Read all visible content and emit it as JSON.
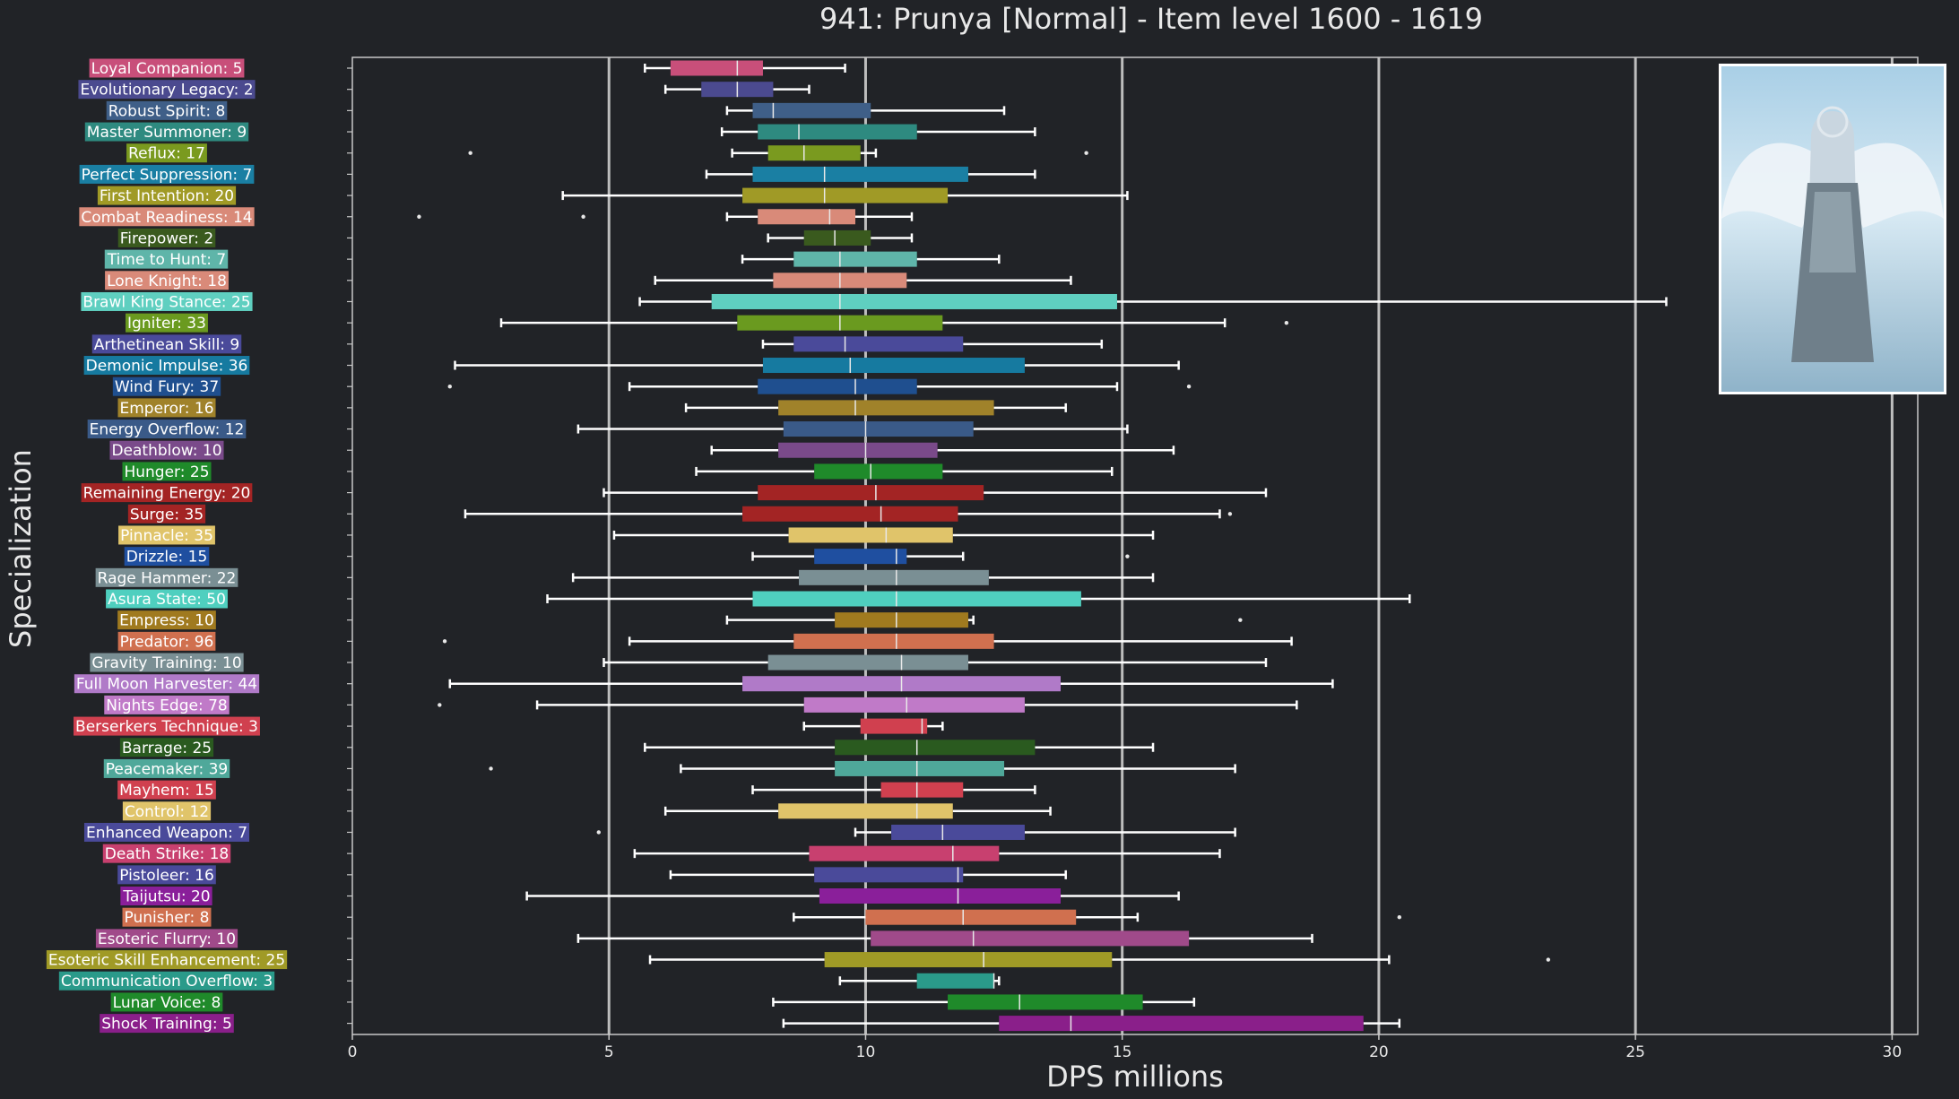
{
  "title": "941: Prunya [Normal] - Item level 1600 - 1619",
  "portrait_icon": "winged-character-portrait",
  "chart_data": {
    "type": "boxplot",
    "orientation": "horizontal",
    "title": "941: Prunya [Normal] - Item level 1600 - 1619",
    "xlabel": "DPS millions",
    "ylabel": "Specialization",
    "xlim": [
      0,
      30.5
    ],
    "xticks": [
      0,
      5,
      10,
      15,
      20,
      25,
      30
    ],
    "grid": "vertical",
    "series": [
      {
        "label": "Loyal Companion: 5",
        "color": "#c84f7a",
        "whislo": 5.7,
        "q1": 6.2,
        "med": 7.5,
        "q3": 8.0,
        "whishi": 9.6,
        "fliers": []
      },
      {
        "label": "Evolutionary Legacy: 2",
        "color": "#4b4a8f",
        "whislo": 6.1,
        "q1": 6.8,
        "med": 7.5,
        "q3": 8.2,
        "whishi": 8.9,
        "fliers": []
      },
      {
        "label": "Robust Spirit: 8",
        "color": "#3f5f88",
        "whislo": 7.3,
        "q1": 7.8,
        "med": 8.2,
        "q3": 10.1,
        "whishi": 12.7,
        "fliers": []
      },
      {
        "label": "Master Summoner: 9",
        "color": "#2e8a80",
        "whislo": 7.2,
        "q1": 7.9,
        "med": 8.7,
        "q3": 11.0,
        "whishi": 13.3,
        "fliers": []
      },
      {
        "label": "Reflux: 17",
        "color": "#7a9a1f",
        "whislo": 7.4,
        "q1": 8.1,
        "med": 8.8,
        "q3": 9.9,
        "whishi": 10.2,
        "fliers": [
          2.3,
          14.3
        ]
      },
      {
        "label": "Perfect Suppression: 7",
        "color": "#1a7fa3",
        "whislo": 6.9,
        "q1": 7.8,
        "med": 9.2,
        "q3": 12.0,
        "whishi": 13.3,
        "fliers": []
      },
      {
        "label": "First Intention: 20",
        "color": "#a09a26",
        "whislo": 4.1,
        "q1": 7.6,
        "med": 9.2,
        "q3": 11.6,
        "whishi": 15.1,
        "fliers": []
      },
      {
        "label": "Combat Readiness: 14",
        "color": "#d98a79",
        "whislo": 7.3,
        "q1": 7.9,
        "med": 9.3,
        "q3": 9.8,
        "whishi": 10.9,
        "fliers": [
          1.3,
          4.5
        ]
      },
      {
        "label": "Firepower: 2",
        "color": "#3a5a1e",
        "whislo": 8.1,
        "q1": 8.8,
        "med": 9.4,
        "q3": 10.1,
        "whishi": 10.9,
        "fliers": []
      },
      {
        "label": "Time to Hunt: 7",
        "color": "#5fb5a9",
        "whislo": 7.6,
        "q1": 8.6,
        "med": 9.5,
        "q3": 11.0,
        "whishi": 12.6,
        "fliers": []
      },
      {
        "label": "Lone Knight: 18",
        "color": "#d98a79",
        "whislo": 5.9,
        "q1": 8.2,
        "med": 9.5,
        "q3": 10.8,
        "whishi": 14.0,
        "fliers": []
      },
      {
        "label": "Brawl King Stance: 25",
        "color": "#5fcfc0",
        "whislo": 5.6,
        "q1": 7.0,
        "med": 9.5,
        "q3": 14.9,
        "whishi": 25.6,
        "fliers": []
      },
      {
        "label": "Igniter: 33",
        "color": "#6a9a1f",
        "whislo": 2.9,
        "q1": 7.5,
        "med": 9.5,
        "q3": 11.5,
        "whishi": 17.0,
        "fliers": [
          18.2
        ]
      },
      {
        "label": "Arthetinean Skill: 9",
        "color": "#4a4a9a",
        "whislo": 8.0,
        "q1": 8.6,
        "med": 9.6,
        "q3": 11.9,
        "whishi": 14.6,
        "fliers": []
      },
      {
        "label": "Demonic Impulse: 36",
        "color": "#167aa0",
        "whislo": 2.0,
        "q1": 8.0,
        "med": 9.7,
        "q3": 13.1,
        "whishi": 16.1,
        "fliers": []
      },
      {
        "label": "Wind Fury: 37",
        "color": "#1f4f8f",
        "whislo": 5.4,
        "q1": 7.9,
        "med": 9.8,
        "q3": 11.0,
        "whishi": 14.9,
        "fliers": [
          1.9,
          16.3
        ]
      },
      {
        "label": "Emperor: 16",
        "color": "#a0822a",
        "whislo": 6.5,
        "q1": 8.3,
        "med": 9.8,
        "q3": 12.5,
        "whishi": 13.9,
        "fliers": []
      },
      {
        "label": "Energy Overflow: 12",
        "color": "#3a5a88",
        "whislo": 4.4,
        "q1": 8.4,
        "med": 10.0,
        "q3": 12.1,
        "whishi": 15.1,
        "fliers": []
      },
      {
        "label": "Deathblow: 10",
        "color": "#7a4a8a",
        "whislo": 7.0,
        "q1": 8.3,
        "med": 10.0,
        "q3": 11.4,
        "whishi": 16.0,
        "fliers": []
      },
      {
        "label": "Hunger: 25",
        "color": "#1f8a2a",
        "whislo": 6.7,
        "q1": 9.0,
        "med": 10.1,
        "q3": 11.5,
        "whishi": 14.8,
        "fliers": []
      },
      {
        "label": "Remaining Energy: 20",
        "color": "#a32424",
        "whislo": 4.9,
        "q1": 7.9,
        "med": 10.2,
        "q3": 12.3,
        "whishi": 17.8,
        "fliers": []
      },
      {
        "label": "Surge: 35",
        "color": "#a32424",
        "whislo": 2.2,
        "q1": 7.6,
        "med": 10.3,
        "q3": 11.8,
        "whishi": 16.9,
        "fliers": [
          17.1
        ]
      },
      {
        "label": "Pinnacle: 35",
        "color": "#e0c46a",
        "whislo": 5.1,
        "q1": 8.5,
        "med": 10.4,
        "q3": 11.7,
        "whishi": 15.6,
        "fliers": []
      },
      {
        "label": "Drizzle: 15",
        "color": "#1f4fa0",
        "whislo": 7.8,
        "q1": 9.0,
        "med": 10.6,
        "q3": 10.8,
        "whishi": 11.9,
        "fliers": [
          15.1
        ]
      },
      {
        "label": "Rage Hammer: 22",
        "color": "#7a8f94",
        "whislo": 4.3,
        "q1": 8.7,
        "med": 10.6,
        "q3": 12.4,
        "whishi": 15.6,
        "fliers": []
      },
      {
        "label": "Asura State: 50",
        "color": "#4fcfbf",
        "whislo": 3.8,
        "q1": 7.8,
        "med": 10.6,
        "q3": 14.2,
        "whishi": 20.6,
        "fliers": []
      },
      {
        "label": "Empress: 10",
        "color": "#a07a1f",
        "whislo": 7.3,
        "q1": 9.4,
        "med": 10.6,
        "q3": 12.0,
        "whishi": 12.1,
        "fliers": [
          17.3
        ]
      },
      {
        "label": "Predator: 96",
        "color": "#d0704f",
        "whislo": 5.4,
        "q1": 8.6,
        "med": 10.6,
        "q3": 12.5,
        "whishi": 18.3,
        "fliers": [
          1.8
        ]
      },
      {
        "label": "Gravity Training: 10",
        "color": "#7a8f94",
        "whislo": 4.9,
        "q1": 8.1,
        "med": 10.7,
        "q3": 12.0,
        "whishi": 17.8,
        "fliers": []
      },
      {
        "label": "Full Moon Harvester: 44",
        "color": "#b07ac8",
        "whislo": 1.9,
        "q1": 7.6,
        "med": 10.7,
        "q3": 13.8,
        "whishi": 19.1,
        "fliers": []
      },
      {
        "label": "Nights Edge: 78",
        "color": "#c07ac8",
        "whislo": 3.6,
        "q1": 8.8,
        "med": 10.8,
        "q3": 13.1,
        "whishi": 18.4,
        "fliers": [
          1.7
        ]
      },
      {
        "label": "Berserkers Technique: 3",
        "color": "#d0404f",
        "whislo": 8.8,
        "q1": 9.9,
        "med": 11.1,
        "q3": 11.2,
        "whishi": 11.5,
        "fliers": []
      },
      {
        "label": "Barrage: 25",
        "color": "#2a5a1f",
        "whislo": 5.7,
        "q1": 9.4,
        "med": 11.0,
        "q3": 13.3,
        "whishi": 15.6,
        "fliers": []
      },
      {
        "label": "Peacemaker: 39",
        "color": "#4fa89a",
        "whislo": 6.4,
        "q1": 9.4,
        "med": 11.0,
        "q3": 12.7,
        "whishi": 17.2,
        "fliers": [
          2.7
        ]
      },
      {
        "label": "Mayhem: 15",
        "color": "#d0404f",
        "whislo": 7.8,
        "q1": 10.3,
        "med": 11.0,
        "q3": 11.9,
        "whishi": 13.3,
        "fliers": []
      },
      {
        "label": "Control: 12",
        "color": "#e0c46a",
        "whislo": 6.1,
        "q1": 8.3,
        "med": 11.0,
        "q3": 11.7,
        "whishi": 13.6,
        "fliers": []
      },
      {
        "label": "Enhanced Weapon: 7",
        "color": "#4a4a9a",
        "whislo": 9.8,
        "q1": 10.5,
        "med": 11.5,
        "q3": 13.1,
        "whishi": 17.2,
        "fliers": [
          4.8
        ]
      },
      {
        "label": "Death Strike: 18",
        "color": "#c8406f",
        "whislo": 5.5,
        "q1": 8.9,
        "med": 11.7,
        "q3": 12.6,
        "whishi": 16.9,
        "fliers": []
      },
      {
        "label": "Pistoleer: 16",
        "color": "#4a4a9a",
        "whislo": 6.2,
        "q1": 9.0,
        "med": 11.8,
        "q3": 11.9,
        "whishi": 13.9,
        "fliers": []
      },
      {
        "label": "Taijutsu: 20",
        "color": "#8a1f9a",
        "whislo": 3.4,
        "q1": 9.1,
        "med": 11.8,
        "q3": 13.8,
        "whishi": 16.1,
        "fliers": []
      },
      {
        "label": "Punisher: 8",
        "color": "#d0704f",
        "whislo": 8.6,
        "q1": 10.0,
        "med": 11.9,
        "q3": 14.1,
        "whishi": 15.3,
        "fliers": [
          20.4
        ]
      },
      {
        "label": "Esoteric Flurry: 10",
        "color": "#a04a8a",
        "whislo": 4.4,
        "q1": 10.1,
        "med": 12.1,
        "q3": 16.3,
        "whishi": 18.7,
        "fliers": []
      },
      {
        "label": "Esoteric Skill Enhancement: 25",
        "color": "#a09a26",
        "whislo": 5.8,
        "q1": 9.2,
        "med": 12.3,
        "q3": 14.8,
        "whishi": 20.2,
        "fliers": [
          23.3
        ]
      },
      {
        "label": "Communication Overflow: 3",
        "color": "#2a9a8a",
        "whislo": 9.5,
        "q1": 11.0,
        "med": 12.5,
        "q3": 12.5,
        "whishi": 12.6,
        "fliers": []
      },
      {
        "label": "Lunar Voice: 8",
        "color": "#1f8a2a",
        "whislo": 8.2,
        "q1": 11.6,
        "med": 13.0,
        "q3": 15.4,
        "whishi": 16.4,
        "fliers": []
      },
      {
        "label": "Shock Training: 5",
        "color": "#8a1f8a",
        "whislo": 8.4,
        "q1": 12.6,
        "med": 14.0,
        "q3": 19.7,
        "whishi": 20.4,
        "fliers": []
      }
    ]
  }
}
